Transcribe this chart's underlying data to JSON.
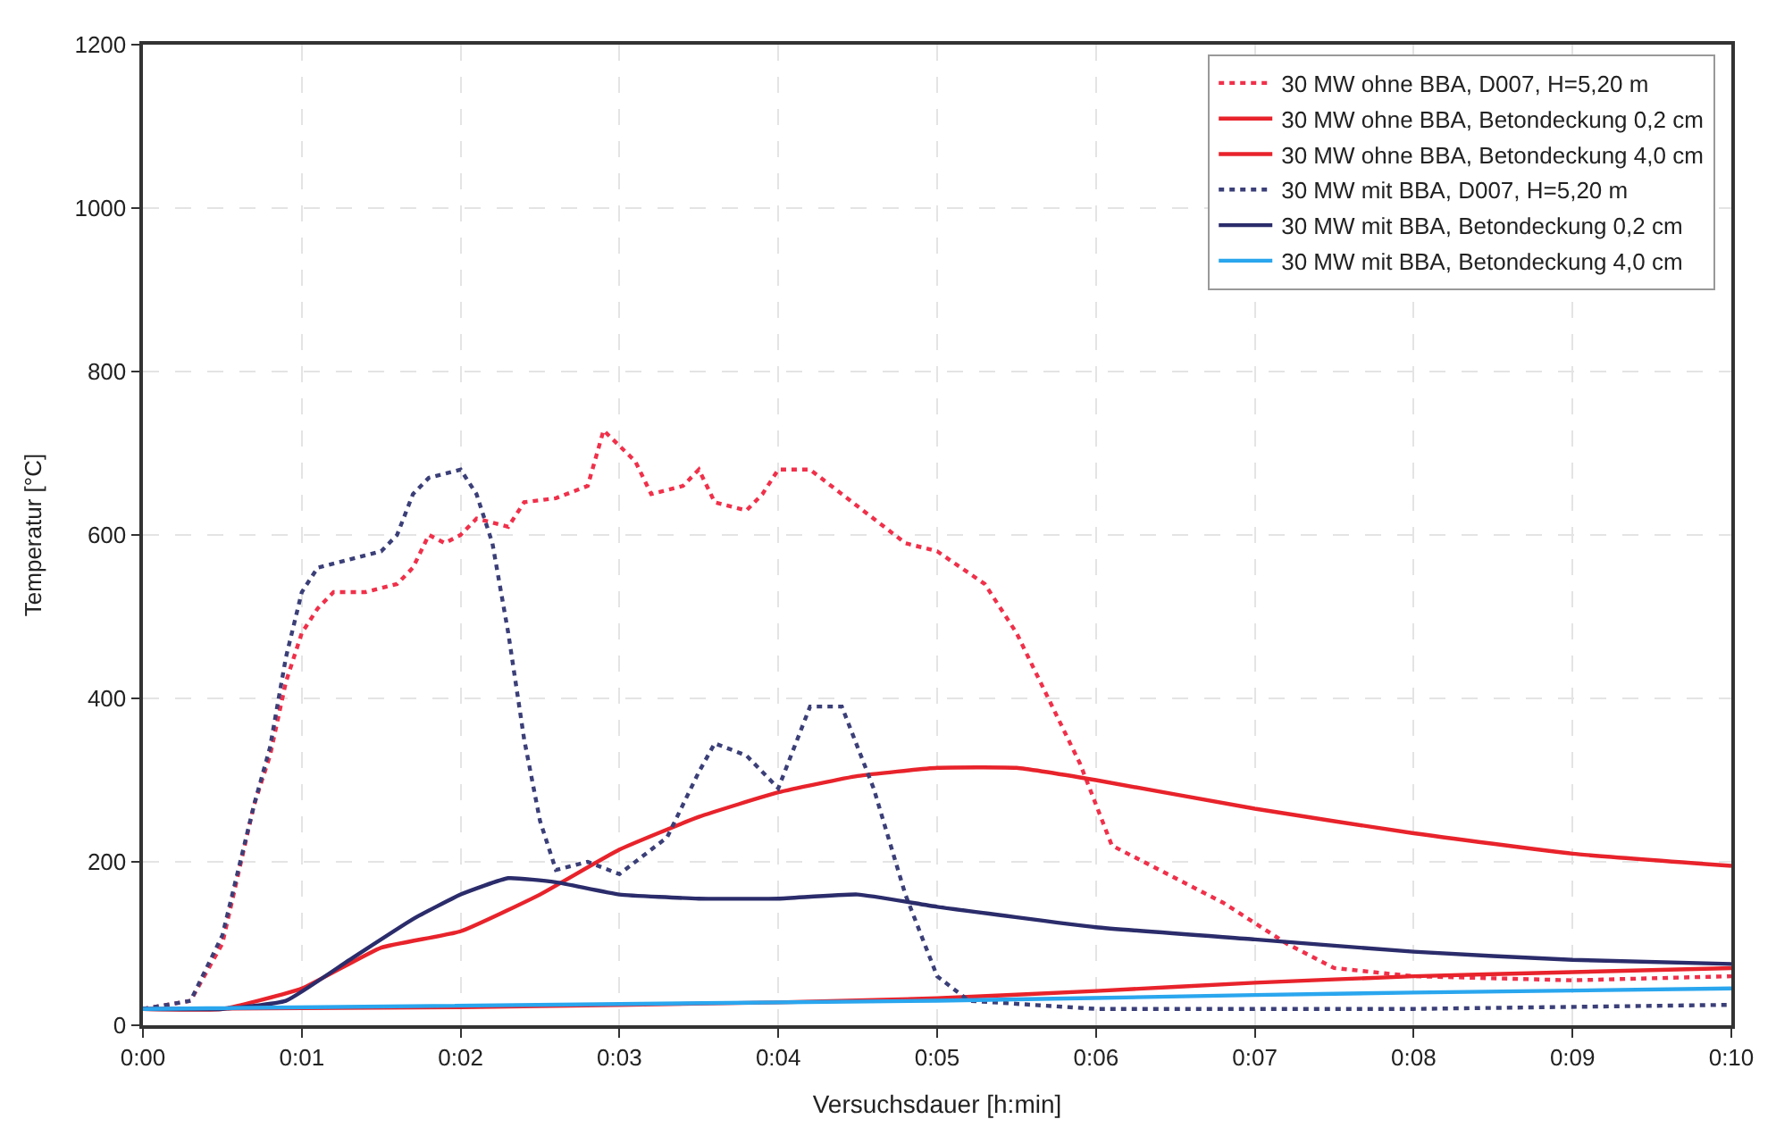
{
  "chart_data": {
    "type": "line",
    "xlabel": "Versuchsdauer [h:min]",
    "ylabel": "Temperatur [°C]",
    "xlim": [
      0,
      10
    ],
    "ylim": [
      0,
      1200
    ],
    "xticks": [
      {
        "value": 0,
        "label": "0:00"
      },
      {
        "value": 1,
        "label": "0:01"
      },
      {
        "value": 2,
        "label": "0:02"
      },
      {
        "value": 3,
        "label": "0:03"
      },
      {
        "value": 4,
        "label": "0:04"
      },
      {
        "value": 5,
        "label": "0:05"
      },
      {
        "value": 6,
        "label": "0:06"
      },
      {
        "value": 7,
        "label": "0:07"
      },
      {
        "value": 8,
        "label": "0:08"
      },
      {
        "value": 9,
        "label": "0:09"
      },
      {
        "value": 10,
        "label": "0:10"
      }
    ],
    "yticks": [
      0,
      200,
      400,
      600,
      800,
      1000,
      1200
    ],
    "grid": true,
    "legend": "top right",
    "marker": "none",
    "series": [
      {
        "name": "30 MW ohne BBA, D007, H=5,20 m",
        "color": "#f0304a",
        "line_style": "dotted",
        "x": [
          0,
          0.3,
          0.5,
          0.7,
          0.8,
          0.9,
          1.0,
          1.1,
          1.2,
          1.4,
          1.6,
          1.7,
          1.8,
          1.9,
          2.0,
          2.1,
          2.3,
          2.4,
          2.6,
          2.8,
          2.9,
          3.1,
          3.2,
          3.4,
          3.5,
          3.6,
          3.8,
          3.9,
          4.0,
          4.2,
          4.4,
          4.6,
          4.8,
          5.0,
          5.3,
          5.5,
          5.7,
          5.9,
          6.1,
          6.4,
          6.8,
          7.2,
          7.5,
          8.0,
          9.0,
          10.0
        ],
        "values": [
          20,
          30,
          100,
          270,
          330,
          420,
          480,
          510,
          530,
          530,
          540,
          560,
          600,
          590,
          600,
          620,
          610,
          640,
          645,
          660,
          728,
          690,
          650,
          660,
          680,
          640,
          630,
          650,
          680,
          680,
          650,
          620,
          590,
          580,
          540,
          480,
          400,
          320,
          220,
          190,
          150,
          100,
          70,
          60,
          55,
          60
        ]
      },
      {
        "name": "30 MW ohne BBA, Betondeckung 0,2 cm",
        "color": "#e8232b",
        "line_style": "solid",
        "x": [
          0,
          0.5,
          1.0,
          1.5,
          2.0,
          2.5,
          3.0,
          3.5,
          4.0,
          4.5,
          5.0,
          5.5,
          6.0,
          7.0,
          8.0,
          9.0,
          10.0
        ],
        "values": [
          20,
          20,
          45,
          95,
          115,
          160,
          215,
          255,
          285,
          305,
          315,
          315,
          300,
          265,
          235,
          210,
          195
        ]
      },
      {
        "name": "30 MW ohne BBA, Betondeckung 4,0 cm",
        "color": "#e8232b",
        "line_style": "solid",
        "x": [
          0,
          2,
          4,
          5,
          6,
          7,
          8,
          9,
          10
        ],
        "values": [
          20,
          22,
          28,
          33,
          42,
          52,
          60,
          65,
          70
        ]
      },
      {
        "name": "30 MW mit BBA, D007, H=5,20 m",
        "color": "#3b3f78",
        "line_style": "dotted",
        "x": [
          0,
          0.3,
          0.5,
          0.7,
          0.8,
          0.9,
          1.0,
          1.1,
          1.3,
          1.5,
          1.6,
          1.7,
          1.8,
          2.0,
          2.1,
          2.2,
          2.3,
          2.4,
          2.5,
          2.6,
          2.8,
          3.0,
          3.3,
          3.5,
          3.6,
          3.8,
          4.0,
          4.2,
          4.4,
          4.6,
          4.8,
          5.0,
          5.2,
          6.0,
          8.0,
          10.0
        ],
        "values": [
          20,
          30,
          110,
          270,
          340,
          450,
          530,
          560,
          570,
          580,
          600,
          650,
          670,
          680,
          650,
          590,
          480,
          350,
          250,
          190,
          200,
          185,
          230,
          310,
          345,
          330,
          290,
          390,
          390,
          290,
          160,
          60,
          30,
          20,
          20,
          25
        ]
      },
      {
        "name": "30 MW mit BBA, Betondeckung 0,2 cm",
        "color": "#2b2c6b",
        "line_style": "solid",
        "x": [
          0,
          0.5,
          0.9,
          1.3,
          1.7,
          2.0,
          2.3,
          2.6,
          3.0,
          3.5,
          4.0,
          4.5,
          5.0,
          6.0,
          7.0,
          8.0,
          9.0,
          10.0
        ],
        "values": [
          20,
          20,
          30,
          80,
          130,
          160,
          180,
          175,
          160,
          155,
          155,
          160,
          145,
          120,
          105,
          90,
          80,
          75
        ]
      },
      {
        "name": "30 MW mit BBA, Betondeckung 4,0 cm",
        "color": "#2aa6ee",
        "line_style": "solid",
        "x": [
          0,
          5,
          7,
          8,
          10
        ],
        "values": [
          20,
          30,
          37,
          40,
          45
        ]
      }
    ]
  }
}
